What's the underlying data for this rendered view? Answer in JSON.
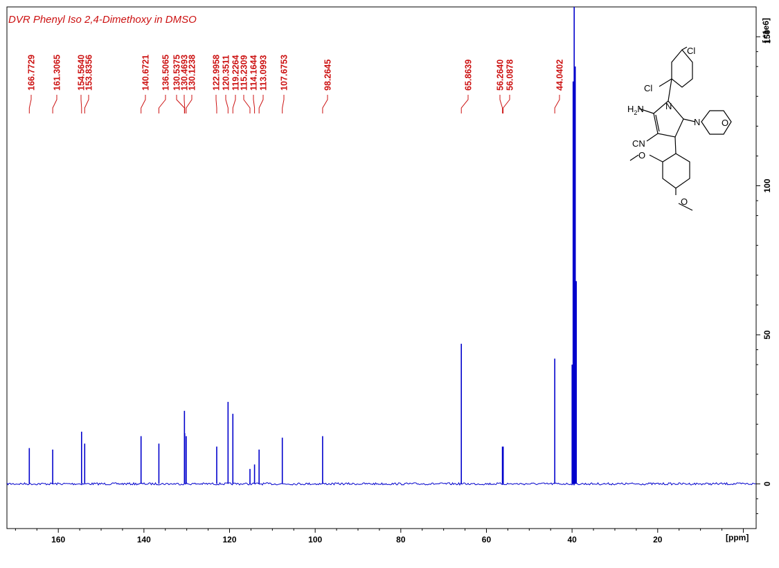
{
  "chart_data": {
    "type": "line",
    "title": "DVR Phenyl Iso 2,4-Dimethoxy in DMSO",
    "xlabel": "[ppm]",
    "ylabel": "[ *1e6]",
    "xlim": [
      172,
      -3
    ],
    "ylim": [
      -15,
      160
    ],
    "x_reversed": true,
    "grid": false,
    "x_ticks": [
      160,
      140,
      120,
      100,
      80,
      60,
      40,
      20
    ],
    "y_ticks": [
      0,
      50,
      100,
      150
    ],
    "peak_labels": [
      "166.7729",
      "161.3065",
      "154.5640",
      "153.8356",
      "140.6721",
      "136.5065",
      "130.5375",
      "130.4693",
      "130.1238",
      "122.9958",
      "120.3511",
      "119.2264",
      "115.2309",
      "114.1644",
      "113.0993",
      "107.6753",
      "98.2645",
      "65.8639",
      "56.2640",
      "56.0878",
      "44.0402"
    ],
    "peaks": [
      {
        "ppm": 166.7729,
        "intensity": 12
      },
      {
        "ppm": 161.3065,
        "intensity": 11.5
      },
      {
        "ppm": 154.564,
        "intensity": 17.5
      },
      {
        "ppm": 153.8356,
        "intensity": 13.5
      },
      {
        "ppm": 140.6721,
        "intensity": 16
      },
      {
        "ppm": 136.5065,
        "intensity": 13.5
      },
      {
        "ppm": 130.5375,
        "intensity": 24.5
      },
      {
        "ppm": 130.4693,
        "intensity": 17
      },
      {
        "ppm": 130.1238,
        "intensity": 16
      },
      {
        "ppm": 122.9958,
        "intensity": 12.5
      },
      {
        "ppm": 120.3511,
        "intensity": 27.5
      },
      {
        "ppm": 119.2264,
        "intensity": 23.5
      },
      {
        "ppm": 115.2309,
        "intensity": 5
      },
      {
        "ppm": 114.1644,
        "intensity": 6.5
      },
      {
        "ppm": 113.0993,
        "intensity": 11.5
      },
      {
        "ppm": 107.6753,
        "intensity": 15.5
      },
      {
        "ppm": 98.2645,
        "intensity": 16
      },
      {
        "ppm": 65.8639,
        "intensity": 47
      },
      {
        "ppm": 56.264,
        "intensity": 12.5
      },
      {
        "ppm": 56.0878,
        "intensity": 12.5
      },
      {
        "ppm": 44.0402,
        "intensity": 42
      },
      {
        "ppm": 39.5,
        "intensity": 175
      }
    ]
  },
  "structure": {
    "atom_labels": [
      "Cl",
      "Cl",
      "H2N",
      "N",
      "N",
      "O",
      "CN",
      "O",
      "O"
    ]
  },
  "colors": {
    "spectrum": "#0000cc",
    "labels": "#cc1111",
    "axis": "#000000"
  }
}
